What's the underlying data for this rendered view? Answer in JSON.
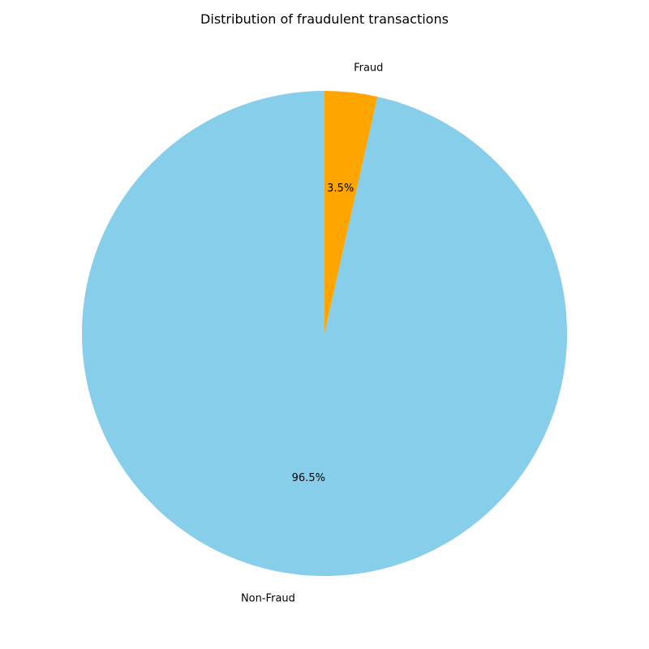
{
  "chart_data": {
    "type": "pie",
    "title": "Distribution of fraudulent transactions",
    "start_angle_deg": 90,
    "counterclock": true,
    "slices": [
      {
        "name": "Non-Fraud",
        "value": 96.5,
        "percent_label": "96.5%",
        "color": "#87CEEB"
      },
      {
        "name": "Fraud",
        "value": 3.5,
        "percent_label": "3.5%",
        "color": "#FFA500"
      }
    ],
    "legend": "none"
  }
}
